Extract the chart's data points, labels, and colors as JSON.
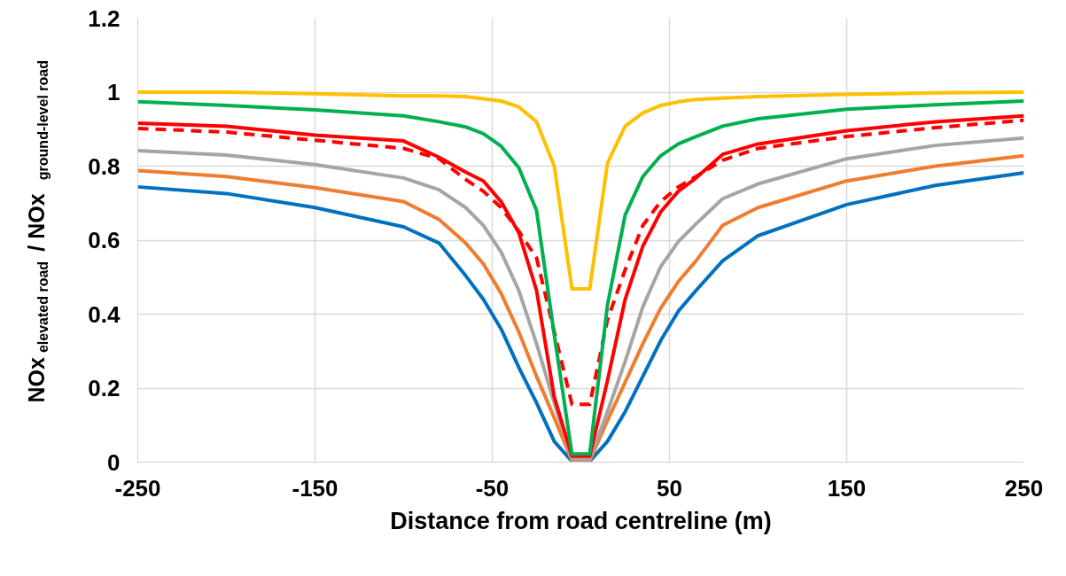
{
  "chart_data": {
    "type": "line",
    "xlabel": "Distance from road centreline (m)",
    "ylabel": "NOx$_{elevated road}$ / NOx$_{ground-level road}$",
    "x": [
      -250,
      -200,
      -150,
      -100,
      -80,
      -65,
      -55,
      -45,
      -35,
      -25,
      -15,
      -5,
      5,
      15,
      25,
      35,
      45,
      55,
      65,
      80,
      100,
      150,
      200,
      250
    ],
    "xlim": [
      -250,
      250
    ],
    "xticks": [
      -250,
      -150,
      -50,
      50,
      150,
      250
    ],
    "ylim": [
      0,
      1.2
    ],
    "yticks": [
      0,
      0.2,
      0.4,
      0.6,
      0.8,
      1,
      1.2
    ],
    "grid": true,
    "line_style": "solid",
    "series": [
      {
        "color": "#0070c0",
        "values": [
          0.744,
          0.726,
          0.688,
          0.636,
          0.592,
          0.504,
          0.44,
          0.36,
          0.256,
          0.16,
          0.056,
          0.002,
          0.002,
          0.056,
          0.136,
          0.232,
          0.328,
          0.408,
          0.464,
          0.544,
          0.612,
          0.696,
          0.748,
          0.782
        ]
      },
      {
        "color": "#ed7d31",
        "values": [
          0.788,
          0.772,
          0.742,
          0.704,
          0.656,
          0.592,
          0.536,
          0.456,
          0.352,
          0.232,
          0.12,
          0.004,
          0.004,
          0.112,
          0.216,
          0.32,
          0.416,
          0.488,
          0.544,
          0.64,
          0.688,
          0.76,
          0.8,
          0.828
        ]
      },
      {
        "color": "#a5a5a5",
        "values": [
          0.842,
          0.83,
          0.804,
          0.768,
          0.736,
          0.688,
          0.64,
          0.568,
          0.464,
          0.32,
          0.16,
          0.008,
          0.008,
          0.136,
          0.272,
          0.42,
          0.528,
          0.596,
          0.644,
          0.712,
          0.752,
          0.82,
          0.856,
          0.876
        ]
      },
      {
        "color": "#ff0000",
        "line_style": "dashed",
        "values": [
          0.902,
          0.892,
          0.87,
          0.848,
          0.82,
          0.764,
          0.732,
          0.688,
          0.624,
          0.552,
          0.352,
          0.156,
          0.156,
          0.384,
          0.52,
          0.64,
          0.704,
          0.744,
          0.772,
          0.816,
          0.848,
          0.88,
          0.904,
          0.924
        ]
      },
      {
        "color": "#ff0000",
        "values": [
          0.916,
          0.908,
          0.884,
          0.868,
          0.824,
          0.784,
          0.76,
          0.704,
          0.62,
          0.464,
          0.176,
          0.016,
          0.016,
          0.22,
          0.44,
          0.584,
          0.676,
          0.732,
          0.768,
          0.832,
          0.86,
          0.896,
          0.92,
          0.936
        ]
      },
      {
        "color": "#00b050",
        "values": [
          0.974,
          0.964,
          0.952,
          0.936,
          0.92,
          0.906,
          0.888,
          0.854,
          0.796,
          0.68,
          0.344,
          0.022,
          0.022,
          0.424,
          0.668,
          0.772,
          0.828,
          0.86,
          0.88,
          0.908,
          0.928,
          0.954,
          0.966,
          0.976
        ]
      },
      {
        "color": "#ffc000",
        "values": [
          1.0,
          1.0,
          0.996,
          0.99,
          0.99,
          0.988,
          0.982,
          0.976,
          0.96,
          0.92,
          0.8,
          0.468,
          0.468,
          0.808,
          0.908,
          0.944,
          0.964,
          0.974,
          0.98,
          0.984,
          0.988,
          0.994,
          0.998,
          1.0
        ]
      }
    ]
  }
}
